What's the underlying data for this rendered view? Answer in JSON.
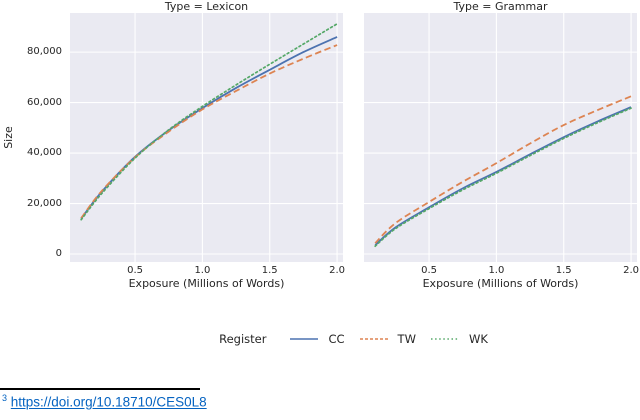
{
  "theme": {
    "panel_bg": "#eaeaf2",
    "grid_color": "#ffffff",
    "text_color": "#262626",
    "link_color": "#0563c1",
    "rule_color": "#000000"
  },
  "figure": {
    "ylabel": "Size",
    "legend": {
      "title": "Register",
      "entries": [
        {
          "label": "CC",
          "color": "#4c72b0",
          "dash": ""
        },
        {
          "label": "TW",
          "color": "#dd8452",
          "dash": "3 2"
        },
        {
          "label": "WK",
          "color": "#55a868",
          "dash": "1.5 2.6"
        }
      ]
    }
  },
  "chart_data": [
    {
      "type": "line",
      "title": "Type = Lexicon",
      "xlabel": "Exposure (Millions of Words)",
      "ylabel": "Size",
      "x": [
        0.1,
        0.25,
        0.5,
        0.75,
        1.0,
        1.25,
        1.5,
        1.75,
        2.0
      ],
      "series": [
        {
          "name": "CC",
          "style": "solid",
          "color": "#4c72b0",
          "values": [
            14000,
            24500,
            38500,
            49000,
            57800,
            65800,
            73000,
            80000,
            86000
          ]
        },
        {
          "name": "TW",
          "style": "dashed",
          "color": "#dd8452",
          "values": [
            14200,
            24800,
            38300,
            48500,
            57300,
            64600,
            71500,
            77400,
            82800
          ]
        },
        {
          "name": "WK",
          "style": "dotted",
          "color": "#55a868",
          "values": [
            13600,
            23800,
            38000,
            49200,
            58500,
            67000,
            75200,
            83200,
            91200
          ]
        }
      ],
      "xticks": {
        "values": [
          0.5,
          1.0,
          1.5,
          2.0
        ],
        "labels": [
          "0.5",
          "1.0",
          "1.5",
          "2.0"
        ]
      },
      "yticks": {
        "values": [
          0,
          20000,
          40000,
          60000,
          80000
        ],
        "labels": [
          "0",
          "20,000",
          "40,000",
          "60,000",
          "80,000"
        ]
      },
      "show_yticklabels": true,
      "xlim": [
        0.017,
        2.044
      ],
      "ylim": [
        -3170,
        95500
      ],
      "grid": true,
      "legend_position": "bottom"
    },
    {
      "type": "line",
      "title": "Type = Grammar",
      "xlabel": "Exposure (Millions of Words)",
      "ylabel": "Size",
      "x": [
        0.1,
        0.25,
        0.5,
        0.75,
        1.0,
        1.25,
        1.5,
        1.75,
        2.0
      ],
      "series": [
        {
          "name": "CC",
          "style": "solid",
          "color": "#4c72b0",
          "values": [
            3500,
            10500,
            18500,
            26000,
            32500,
            39500,
            46300,
            52500,
            58200
          ]
        },
        {
          "name": "TW",
          "style": "dashed",
          "color": "#dd8452",
          "values": [
            4300,
            12200,
            20600,
            28600,
            36000,
            43800,
            51100,
            57000,
            62500
          ]
        },
        {
          "name": "WK",
          "style": "dotted",
          "color": "#55a868",
          "values": [
            3100,
            10000,
            18000,
            25400,
            32000,
            39000,
            45800,
            52000,
            57800
          ]
        }
      ],
      "xticks": {
        "values": [
          0.5,
          1.0,
          1.5,
          2.0
        ],
        "labels": [
          "0.5",
          "1.0",
          "1.5",
          "2.0"
        ]
      },
      "yticks": {
        "values": [
          0,
          20000,
          40000,
          60000,
          80000
        ],
        "labels": [
          "0",
          "20,000",
          "40,000",
          "60,000",
          "80,000"
        ]
      },
      "show_yticklabels": false,
      "xlim": [
        0.017,
        2.044
      ],
      "ylim": [
        -3170,
        95500
      ],
      "grid": true,
      "legend_position": "bottom"
    }
  ],
  "footnote": {
    "marker": "3",
    "link_text": "https://doi.org/10.18710/CES0L8"
  }
}
